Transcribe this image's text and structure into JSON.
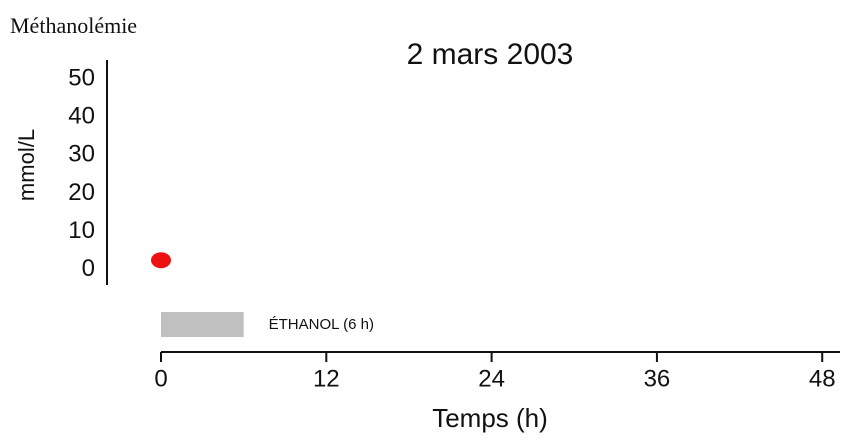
{
  "chart_data": {
    "type": "scatter",
    "title": "2 mars 2003",
    "y_title": "Méthanolémie",
    "ylabel": "mmol/L",
    "xlabel": "Temps (h)",
    "series": [
      {
        "name": "Méthanolémie",
        "color": "#ee1111",
        "x": [
          0
        ],
        "values": [
          2.5
        ]
      }
    ],
    "xlim": [
      0,
      49
    ],
    "xticks": [
      0,
      12,
      24,
      36,
      48
    ],
    "ylim": [
      -4,
      55
    ],
    "yticks": [
      0,
      10,
      20,
      30,
      40,
      50
    ],
    "annotations": [
      {
        "text": "ÉTHANOL (6 h)",
        "start": 0,
        "end": 6,
        "color": "#c0c0c0"
      }
    ]
  }
}
